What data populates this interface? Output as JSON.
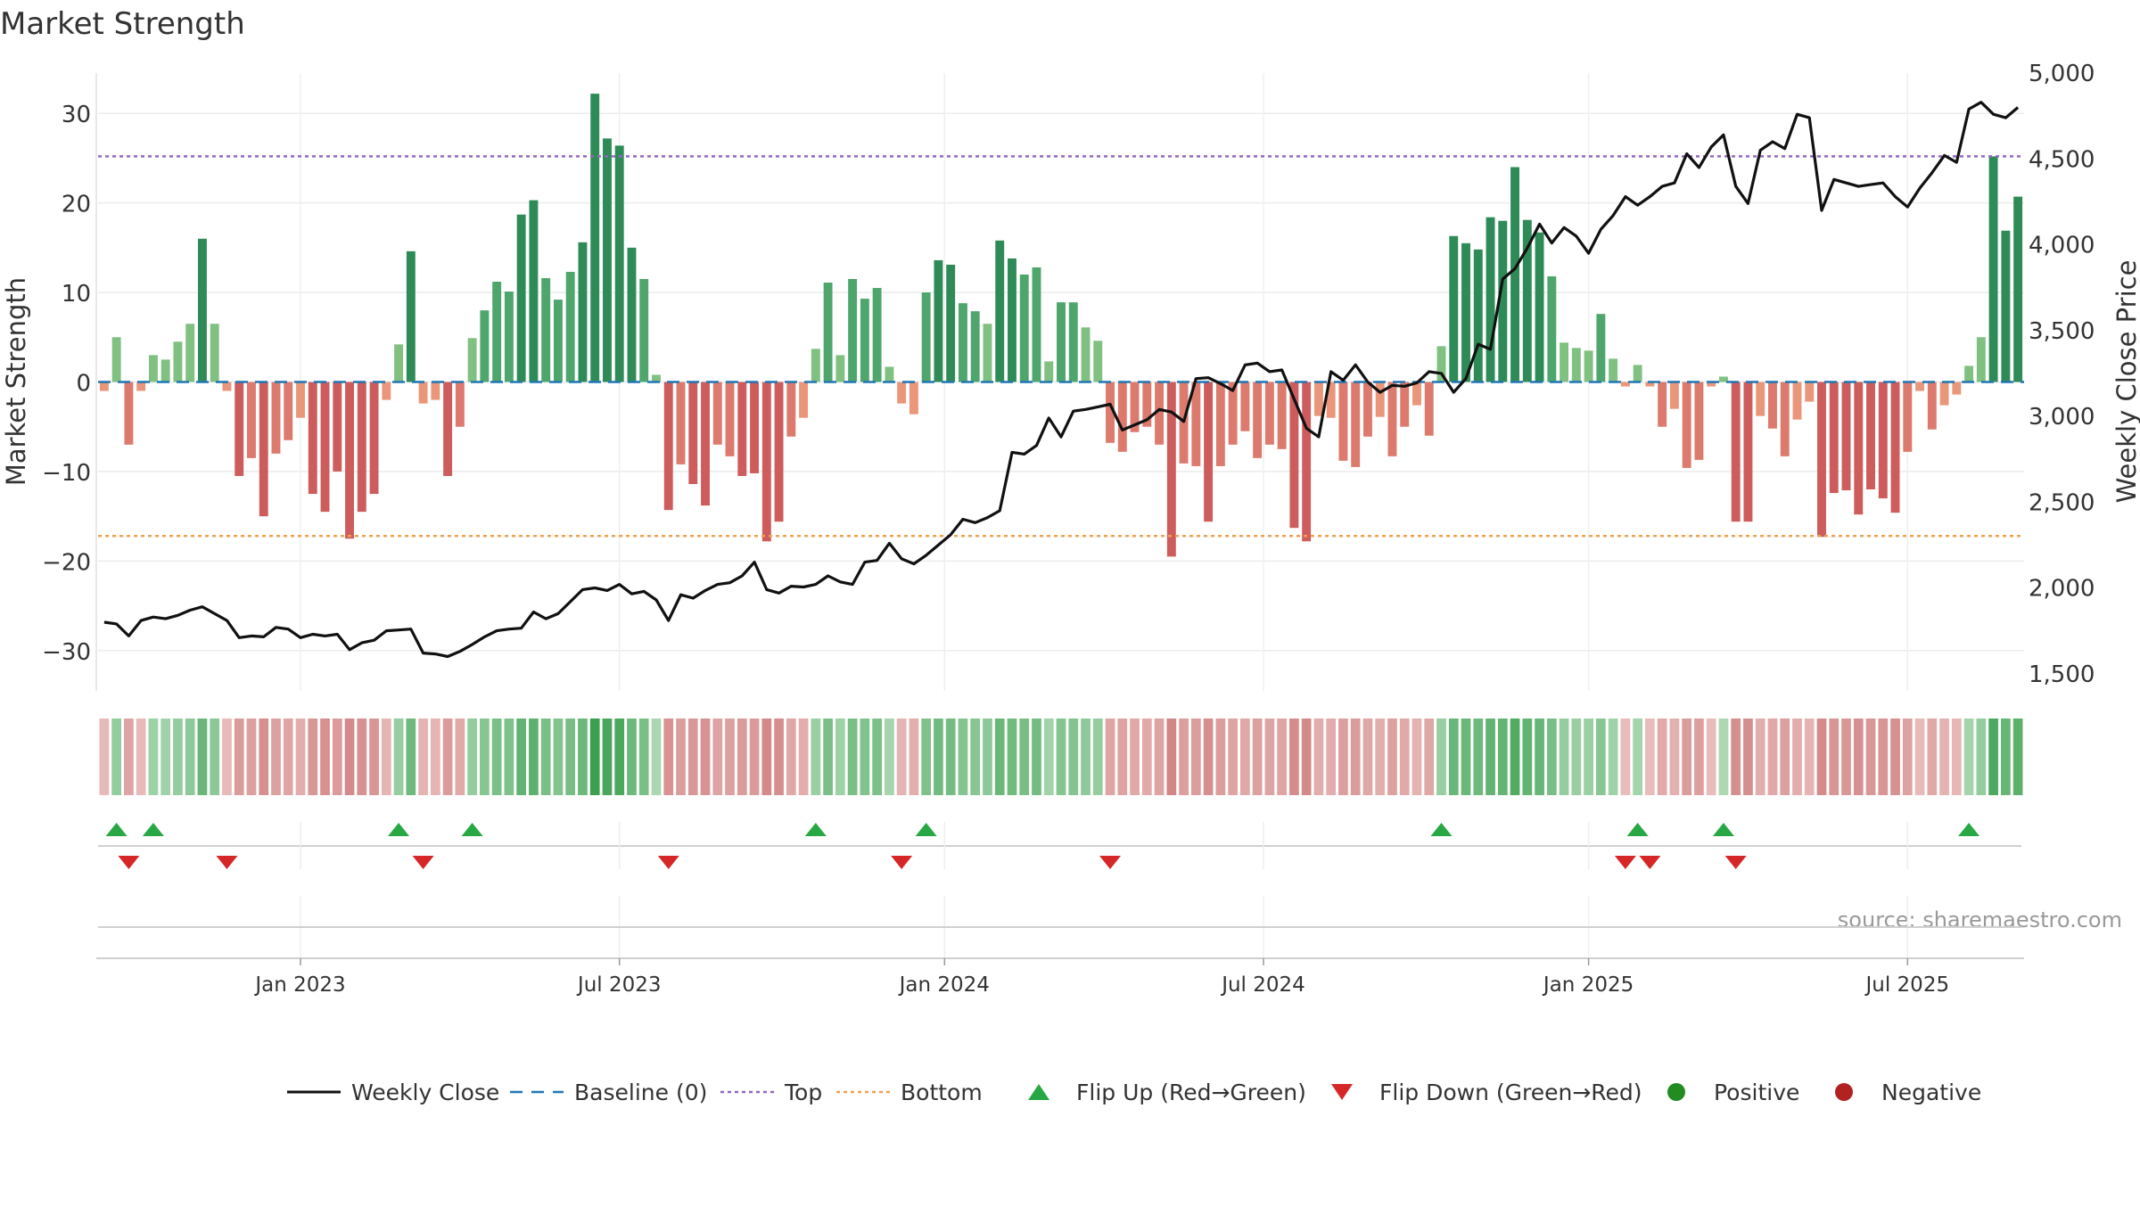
{
  "chart_data": {
    "type": "bar",
    "title": "Market Strength",
    "ylabel": "Market Strength",
    "y2label": "Weekly Close Price",
    "source": "source: sharemaestro.com",
    "ylim": [
      -34.5,
      34.5
    ],
    "y2lim": [
      1400,
      5000
    ],
    "y_ticks": [
      30,
      20,
      10,
      0,
      -10,
      -20,
      -30
    ],
    "y_tick_labels": [
      "30",
      "20",
      "10",
      "0",
      "−10",
      "−20",
      "−30"
    ],
    "y2_ticks": [
      5000,
      4500,
      4000,
      3500,
      3000,
      2500,
      2000,
      1500
    ],
    "y2_tick_labels": [
      "5,000",
      "4,500",
      "4,000",
      "3,500",
      "3,000",
      "2,500",
      "2,000",
      "1,500"
    ],
    "x_ticks": [
      {
        "label": "Jan 2023",
        "week": 16
      },
      {
        "label": "Jul 2023",
        "week": 42
      },
      {
        "label": "Jan 2024",
        "week": 68.5
      },
      {
        "label": "Jul 2024",
        "week": 94.5
      },
      {
        "label": "Jan 2025",
        "week": 121
      },
      {
        "label": "Jul 2025",
        "week": 147
      }
    ],
    "top_threshold": 25.2,
    "bottom_threshold": -17.2,
    "grid": true,
    "legend_position": "bottom",
    "colors": {
      "pos_strong": "#2e8b57",
      "pos_weak": "#80c080",
      "neg_strong": "#cd5c5c",
      "neg_weak": "#e9967a",
      "close": "#111111",
      "baseline": "#1f77b4",
      "top": "#9467bd",
      "bottom": "#f0a050",
      "flip_up": "#27a844",
      "flip_down": "#d62728",
      "positive": "#228b22",
      "negative": "#b22222"
    },
    "legend": [
      {
        "key": "close",
        "label": "Weekly Close",
        "marker": "line"
      },
      {
        "key": "baseline",
        "label": "Baseline (0)",
        "marker": "dash"
      },
      {
        "key": "top",
        "label": "Top",
        "marker": "dot"
      },
      {
        "key": "bottom",
        "label": "Bottom",
        "marker": "dot"
      },
      {
        "key": "flip_up",
        "label": "Flip Up (Red→Green)",
        "marker": "tri-up"
      },
      {
        "key": "flip_down",
        "label": "Flip Down (Green→Red)",
        "marker": "tri-down"
      },
      {
        "key": "positive",
        "label": "Positive",
        "marker": "circle"
      },
      {
        "key": "negative",
        "label": "Negative",
        "marker": "circle"
      }
    ],
    "strength": [
      -1,
      5,
      -7,
      -1,
      3,
      2.5,
      4.5,
      6.5,
      16,
      6.5,
      -1,
      -10.5,
      -8.5,
      -15,
      -8,
      -6.5,
      -4,
      -12.5,
      -14.5,
      -10,
      -17.5,
      -14.5,
      -12.5,
      -2,
      4.2,
      14.6,
      -2.4,
      -2,
      -10.5,
      -5,
      4.9,
      8,
      11.2,
      10.1,
      18.7,
      20.3,
      11.6,
      9.2,
      12.3,
      15.6,
      32.2,
      27.2,
      26.4,
      15,
      11.5,
      0.8,
      -14.3,
      -9.2,
      -11.4,
      -13.8,
      -7,
      -8.3,
      -10.5,
      -10.2,
      -17.8,
      -15.6,
      -6.1,
      -4,
      3.7,
      11.1,
      3,
      11.5,
      9.3,
      10.5,
      1.7,
      -2.4,
      -3.6,
      10,
      13.6,
      13.1,
      8.8,
      7.9,
      6.5,
      15.8,
      13.8,
      12,
      12.8,
      2.3,
      8.9,
      8.9,
      6.1,
      4.6,
      -6.8,
      -7.8,
      -5.6,
      -5,
      -7,
      -19.5,
      -9.1,
      -9.4,
      -15.6,
      -9.4,
      -7,
      -5.5,
      -8.5,
      -7,
      -7.5,
      -16.3,
      -17.8,
      -3.8,
      -4,
      -8.8,
      -9.5,
      -6.1,
      -3.9,
      -8.3,
      -5,
      -2.6,
      -6,
      4,
      16.3,
      15.5,
      14.8,
      18.4,
      18,
      24,
      18.1,
      16.7,
      11.8,
      4.4,
      3.8,
      3.5,
      7.6,
      2.6,
      -0.5,
      1.9,
      -0.5,
      -5,
      -3,
      -9.6,
      -8.7,
      -0.5,
      0.6,
      -15.6,
      -15.6,
      -3.8,
      -5.2,
      -8.3,
      -4.2,
      -2.2,
      -17.3,
      -12.4,
      -12.1,
      -14.8,
      -12,
      -13,
      -14.6,
      -7.8,
      -1,
      -5.3,
      -2.6,
      -1.4,
      1.8,
      5,
      25.2,
      16.9,
      20.7
    ],
    "weekly_close": [
      1800,
      1790,
      1720,
      1810,
      1830,
      1820,
      1840,
      1870,
      1890,
      1850,
      1810,
      1710,
      1720,
      1715,
      1770,
      1760,
      1710,
      1730,
      1720,
      1730,
      1640,
      1680,
      1695,
      1750,
      1755,
      1760,
      1620,
      1615,
      1600,
      1630,
      1670,
      1715,
      1750,
      1760,
      1765,
      1860,
      1820,
      1850,
      1920,
      1990,
      2000,
      1985,
      2020,
      1965,
      1980,
      1930,
      1810,
      1960,
      1940,
      1985,
      2020,
      2030,
      2070,
      2150,
      1990,
      1970,
      2010,
      2005,
      2020,
      2070,
      2035,
      2020,
      2150,
      2160,
      2260,
      2170,
      2140,
      2190,
      2250,
      2310,
      2400,
      2380,
      2410,
      2450,
      2790,
      2780,
      2830,
      2990,
      2880,
      3030,
      3040,
      3055,
      3070,
      2920,
      2950,
      2980,
      3040,
      3025,
      2970,
      3220,
      3225,
      3190,
      3150,
      3300,
      3310,
      3260,
      3270,
      3100,
      2930,
      2880,
      3260,
      3210,
      3300,
      3200,
      3140,
      3180,
      3175,
      3195,
      3260,
      3250,
      3140,
      3220,
      3420,
      3390,
      3800,
      3860,
      3980,
      4120,
      4010,
      4100,
      4050,
      3950,
      4090,
      4170,
      4280,
      4230,
      4280,
      4340,
      4360,
      4530,
      4450,
      4570,
      4640,
      4340,
      4240,
      4550,
      4600,
      4560,
      4760,
      4740,
      4200,
      4380,
      4360,
      4340,
      4350,
      4360,
      4280,
      4220,
      4330,
      4420,
      4520,
      4480,
      4790,
      4830,
      4760,
      4740,
      4800
    ]
  }
}
